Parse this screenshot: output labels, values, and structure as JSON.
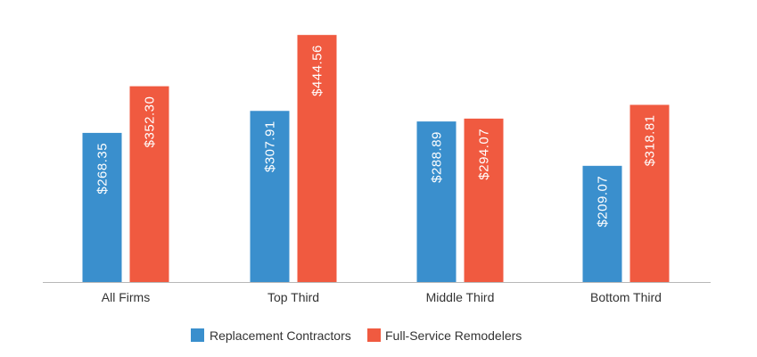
{
  "chart_data": {
    "type": "bar",
    "title": "",
    "xlabel": "",
    "ylabel": "",
    "categories": [
      "All Firms",
      "Top Third",
      "Middle Third",
      "Bottom Third"
    ],
    "series": [
      {
        "name": "Replacement Contractors",
        "color": "#3a8fcd",
        "values": [
          268.35,
          307.91,
          288.89,
          209.07
        ],
        "labels": [
          "$268.35",
          "$307.91",
          "$288.89",
          "$209.07"
        ]
      },
      {
        "name": "Full-Service Remodelers",
        "color": "#f05a40",
        "values": [
          352.3,
          444.56,
          294.07,
          318.81
        ],
        "labels": [
          "$352.30",
          "$444.56",
          "$294.07",
          "$318.81"
        ]
      }
    ],
    "ylim": [
      0,
      500
    ],
    "grid": false,
    "legend_position": "bottom-center",
    "data_label_orientation": "vertical-inside-bar"
  }
}
